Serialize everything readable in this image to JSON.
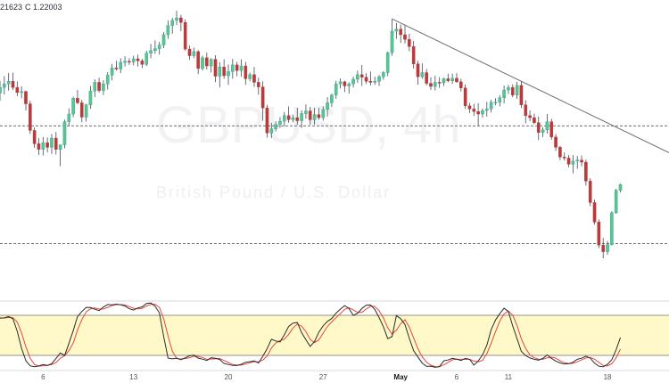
{
  "header": {
    "open_partial": "21623",
    "close": "C 1.22003"
  },
  "watermark": {
    "symbol": "GBPUSD, 4h",
    "name": "British Pound / U.S. Dollar"
  },
  "colors": {
    "up": "#26a69a",
    "up_fill": "#5cc58e",
    "down": "#b93a3a",
    "wick": "#454a55",
    "trendline": "#6b6e78",
    "level": "#3b3f4a",
    "stoch_k": "#2b2b2b",
    "stoch_d": "#e8463c",
    "stoch_band": "#fff8c8",
    "stoch_band_border": "#2b2b2b",
    "separator": "#b2b5be"
  },
  "chart_data": [
    {
      "type": "candlestick",
      "symbol": "GBPUSD",
      "timeframe": "4h",
      "x_ticks": [
        "6",
        "13",
        "20",
        "27",
        "May",
        "6",
        "11",
        "18"
      ],
      "x_tick_bold": "May",
      "price_range": [
        1.195,
        1.246
      ],
      "horizontal_levels": [
        1.2235,
        1.2005
      ],
      "trendline": {
        "from": {
          "bar": 91,
          "price": 1.2444
        },
        "to": {
          "bar": 151,
          "price": 1.22
        }
      },
      "candles_compact": "1.2299,1.2323,1.2284,1.2310|1.2310,1.2332,1.2296,1.2317|1.2317,1.2338,1.2304,1.2322|1.2322,1.2339,1.2305,1.2310|1.2310,1.2322,1.2293,1.2300|1.2300,1.2312,1.2289,1.2302|1.2302,1.2304,1.2265,1.2278|1.2278,1.2284,1.2219,1.2226|1.2226,1.2232,1.2192,1.2200|1.2200,1.2211,1.2178,1.2189|1.2189,1.2213,1.2177,1.2202|1.2202,1.2212,1.2183,1.2193|1.2193,1.2219,1.2180,1.2211|1.2211,1.2223,1.2179,1.2189|1.2189,1.2198,1.2156,1.2198|1.2198,1.2247,1.2191,1.2243|1.2243,1.2269,1.2234,1.2258|1.2258,1.2292,1.2252,1.2289|1.2289,1.2305,1.2277,1.2280|1.2280,1.2286,1.2242,1.2252|1.2252,1.2278,1.2243,1.2276|1.2276,1.2313,1.2268,1.2303|1.2303,1.2326,1.2291,1.2320|1.2320,1.2329,1.2300,1.2304|1.2304,1.2324,1.2295,1.2317|1.2317,1.2340,1.2306,1.2334|1.2334,1.2356,1.2324,1.2348|1.2348,1.2362,1.2343,1.2346|1.2346,1.2367,1.2338,1.2359|1.2359,1.2371,1.2351,1.2361|1.2361,1.2367,1.2354,1.2360|1.2360,1.2372,1.2353,1.2366|1.2366,1.2374,1.2351,1.2362|1.2362,1.2366,1.2348,1.2355|1.2355,1.2382,1.2352,1.2377|1.2377,1.2395,1.2367,1.2382|1.2382,1.2402,1.2376,1.2386|1.2386,1.2399,1.2374,1.2393|1.2393,1.2418,1.2387,1.2413|1.2413,1.2441,1.2405,1.2431|1.2431,1.2446,1.2415,1.2441|1.2441,1.2460,1.2432,1.2446|1.2446,1.2452,1.2420,1.2437|1.2437,1.2443,1.2382,1.2385|1.2385,1.2392,1.2364,1.2372|1.2372,1.2388,1.2368,1.2380|1.2380,1.2383,1.2336,1.2347|1.2347,1.2372,1.2343,1.2368|1.2368,1.2378,1.2345,1.2352|1.2352,1.2367,1.2339,1.2365|1.2365,1.2373,1.2320,1.2332|1.2332,1.2359,1.2310,1.2350|1.2350,1.2365,1.2327,1.2333|1.2333,1.2355,1.2315,1.2341|1.2341,1.2366,1.2327,1.2354|1.2354,1.2360,1.2332,1.2343|1.2343,1.2365,1.2331,1.2352|1.2352,1.2360,1.2315,1.2327|1.2327,1.2339,1.2322,1.2335|1.2335,1.2350,1.2311,1.2320|1.2320,1.2329,1.2296,1.2311|1.2311,1.2322,1.2245,1.2270|1.2270,1.2276,1.2212,1.2221|1.2221,1.2241,1.2211,1.2229|1.2229,1.2244,1.2224,1.2238|1.2238,1.2252,1.2231,1.2244|1.2244,1.2262,1.2234,1.2255|1.2255,1.2273,1.2241,1.2247|1.2247,1.2257,1.2242,1.2251|1.2251,1.2270,1.2237,1.2245|1.2245,1.2265,1.2231,1.2259|1.2259,1.2277,1.2249,1.2264|1.2264,1.2272,1.2237,1.2247|1.2247,1.2270,1.2237,1.2257|1.2257,1.2270,1.2247,1.2251|1.2251,1.2273,1.2245,1.2267|1.2267,1.2291,1.2253,1.2280|1.2280,1.2298,1.2272,1.2295|1.2295,1.2323,1.2288,1.2317|1.2317,1.2328,1.2308,1.2321|1.2321,1.2323,1.2301,1.2313|1.2313,1.2320,1.2298,1.2317|1.2317,1.2331,1.2310,1.2326|1.2326,1.2343,1.2319,1.2335|1.2335,1.2354,1.2313,1.2330|1.2330,1.2338,1.2317,1.2322|1.2322,1.2341,1.2314,1.2320|1.2320,1.2331,1.2315,1.2322|1.2322,1.2334,1.2313,1.2331|1.2331,1.2342,1.2325,1.2339|1.2339,1.2380,1.2332,1.2378|1.2378,1.2444,1.2372,1.2420|1.2420,1.2436,1.2405,1.2424|1.2424,1.2433,1.2397,1.2413|1.2413,1.2433,1.2396,1.2404|1.2404,1.2415,1.2381,1.2390|1.2390,1.2401,1.2347,1.2356|1.2356,1.2362,1.2315,1.2331|1.2331,1.2357,1.2327,1.2339|1.2339,1.2346,1.2314,1.2318|1.2318,1.2330,1.2305,1.2312|1.2312,1.2333,1.2304,1.2320|1.2320,1.2330,1.2309,1.2319|1.2319,1.2329,1.2313,1.2327|1.2327,1.2337,1.2320,1.2323|1.2323,1.2337,1.2317,1.2328|1.2328,1.2338,1.2319,1.2321|1.2321,1.2327,1.2302,1.2309|1.2309,1.2316,1.2268,1.2274|1.2274,1.2280,1.2260,1.2268|1.2268,1.2278,1.2254,1.2263|1.2263,1.2279,1.2235,1.2258|1.2258,1.2269,1.2251,1.2265|1.2265,1.2282,1.2253,1.2268|1.2268,1.2286,1.2261,1.2281|1.2281,1.2289,1.2275,1.2281|1.2281,1.2295,1.2273,1.2290|1.2290,1.2314,1.2279,1.2305|1.2305,1.2315,1.2297,1.2310|1.2310,1.2316,1.2291,1.2295|1.2295,1.2321,1.2288,1.2314|1.2314,1.2322,1.2270,1.2276|1.2276,1.2285,1.2240,1.2255|1.2255,1.2265,1.2244,1.2251|1.2251,1.2259,1.2238,1.2241|1.2241,1.2253,1.2207,1.2222|1.2222,1.2232,1.2213,1.2227|1.2227,1.2258,1.2220,1.2243|1.2243,1.2249,1.2208,1.2213|1.2213,1.2219,1.2186,1.2193|1.2193,1.2196,1.2168,1.2174|1.2174,1.2183,1.2167,1.2172|1.2172,1.2178,1.2154,1.2160|1.2160,1.2178,1.2142,1.2166|1.2166,1.2176,1.2151,1.2168|1.2168,1.2177,1.2156,1.2164|1.2164,1.2169,1.2118,1.2127|1.2127,1.2133,1.2078,1.2085|1.2085,1.2091,1.2042,1.2047|1.2047,1.2052,1.1996,1.2002|1.2002,1.2016,1.1976,1.1989|1.1989,1.2010,1.1983,1.2003|1.2003,1.2068,1.2001,1.2065|1.2065,1.2112,1.2063,1.2109|1.2109,1.2122,1.2105,1.2120"
    },
    {
      "type": "line",
      "indicator": "Stochastic",
      "range": [
        0,
        100
      ],
      "band": [
        20,
        80
      ],
      "k_values": [
        75.9,
        76.2,
        78.2,
        74.8,
        56.2,
        30.9,
        12.0,
        4.4,
        3.1,
        4.1,
        6.3,
        5.0,
        7.7,
        15.4,
        23.6,
        19.8,
        38.2,
        57.1,
        78.1,
        85.7,
        91.9,
        91.6,
        89.1,
        87.1,
        92.4,
        96.1,
        95.6,
        96.7,
        95.8,
        93.8,
        89.8,
        87.8,
        91.1,
        92.7,
        97.7,
        98.4,
        93.4,
        83.4,
        48.3,
        15.8,
        14.8,
        15.8,
        13.6,
        16.4,
        19.5,
        20.4,
        15.9,
        14.4,
        12.4,
        16.6,
        15.6,
        13.8,
        7.8,
        6.4,
        5.0,
        4.8,
        6.7,
        9.7,
        10.6,
        11.9,
        8.5,
        18.7,
        30.1,
        44.2,
        41.6,
        40.2,
        51.0,
        63.3,
        68.3,
        69.2,
        54.1,
        43.5,
        33.4,
        40.7,
        54.6,
        64.3,
        70.9,
        75.2,
        83.2,
        89.3,
        94.6,
        90.1,
        79.8,
        83.1,
        90.3,
        95.2,
        95.5,
        88.8,
        76.5,
        62.5,
        45.1,
        48.0,
        79.6,
        74.8,
        66.1,
        45.3,
        27.1,
        17.6,
        8.6,
        3.5,
        3.8,
        2.2,
        3.3,
        11.9,
        13.1,
        15.6,
        14.4,
        12.4,
        15.4,
        14.1,
        5.4,
        11.6,
        20.8,
        35.2,
        58.4,
        73.0,
        82.5,
        90.6,
        85.9,
        64.0,
        45.2,
        26.2,
        19.7,
        16.1,
        14.1,
        12.9,
        15.5,
        20.7,
        15.6,
        11.5,
        8.7,
        7.2,
        7.4,
        9.7,
        14.2,
        15.7,
        18.8,
        15.8,
        8.6,
        3.7,
        2.8,
        6.5,
        13.5,
        28.4,
        46.5
      ],
      "d_values": [
        75.9,
        76.0,
        76.8,
        76.4,
        69.7,
        53.9,
        33.0,
        15.8,
        6.5,
        3.9,
        4.5,
        5.1,
        6.3,
        9.4,
        15.6,
        19.6,
        27.2,
        38.4,
        57.8,
        73.6,
        85.2,
        89.7,
        90.9,
        89.3,
        89.5,
        91.9,
        94.7,
        96.1,
        96.0,
        95.4,
        93.1,
        90.5,
        89.6,
        90.5,
        93.8,
        96.3,
        96.5,
        91.7,
        75.0,
        49.2,
        26.3,
        15.5,
        14.7,
        15.3,
        16.5,
        18.8,
        18.6,
        16.9,
        14.2,
        14.5,
        14.9,
        15.3,
        12.4,
        9.3,
        6.4,
        5.4,
        5.5,
        7.1,
        9.0,
        10.7,
        10.3,
        13.0,
        19.1,
        31.0,
        38.6,
        42.0,
        44.3,
        51.5,
        60.9,
        66.9,
        63.9,
        55.6,
        43.7,
        39.2,
        42.9,
        53.2,
        63.3,
        70.1,
        76.4,
        82.6,
        89.0,
        91.3,
        88.2,
        84.3,
        84.4,
        89.5,
        93.7,
        93.2,
        86.9,
        75.9,
        61.4,
        51.9,
        57.6,
        67.5,
        73.5,
        62.1,
        46.2,
        30.0,
        17.8,
        9.9,
        5.3,
        3.2,
        3.1,
        5.8,
        9.4,
        13.5,
        14.4,
        14.1,
        14.1,
        14.0,
        11.6,
        10.4,
        12.6,
        22.5,
        38.1,
        55.5,
        71.3,
        82.0,
        86.3,
        80.2,
        65.0,
        45.1,
        30.4,
        20.7,
        16.6,
        14.4,
        14.2,
        16.4,
        17.3,
        15.9,
        11.9,
        9.1,
        7.8,
        8.1,
        10.4,
        13.2,
        16.2,
        16.8,
        14.4,
        9.4,
        5.0,
        4.3,
        7.6,
        16.1,
        29.5
      ]
    }
  ]
}
